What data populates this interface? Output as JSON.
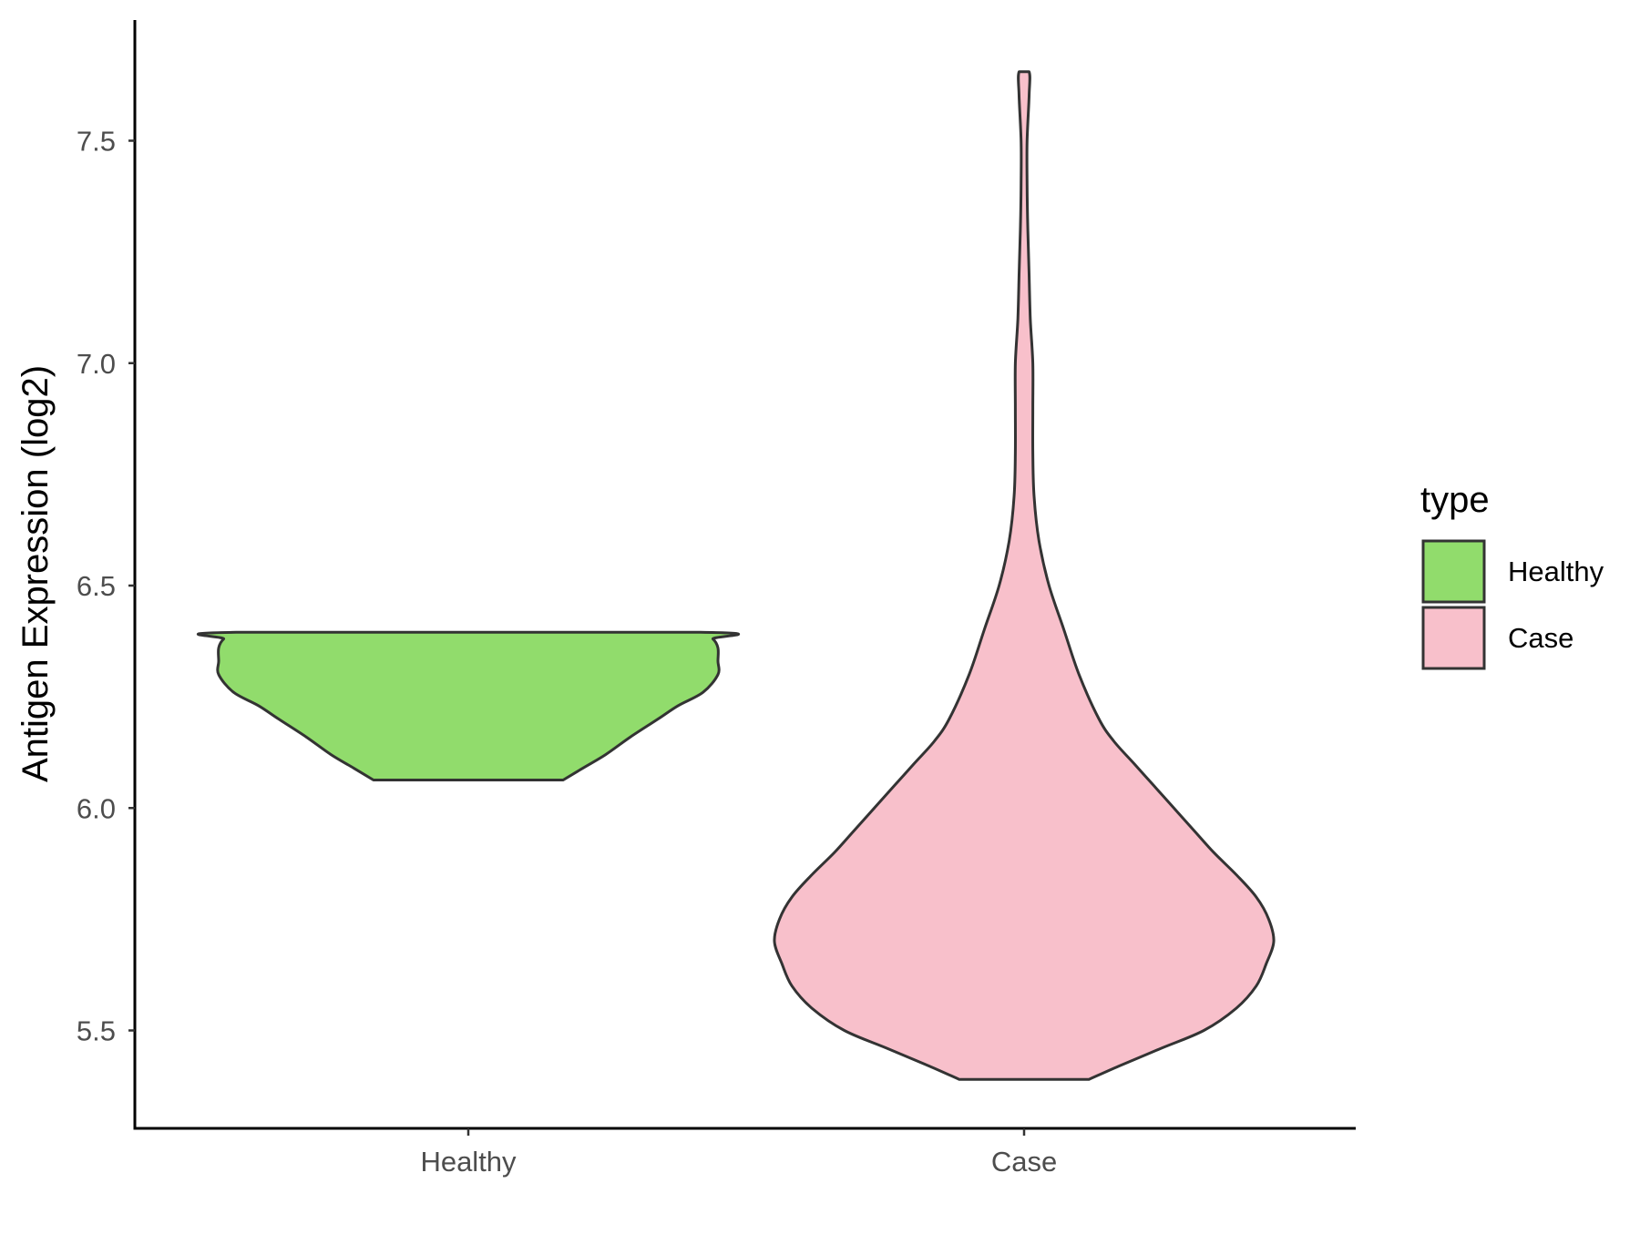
{
  "chart_data": {
    "type": "violin",
    "xlabel": "",
    "ylabel": "Antigen Expression (log2)",
    "ylim": [
      5.28,
      7.78
    ],
    "yticks": [
      5.5,
      6.0,
      6.5,
      7.0,
      7.5
    ],
    "ytick_labels": [
      "5.5",
      "6.0",
      "6.5",
      "7.0",
      "7.5"
    ],
    "categories": [
      "Healthy",
      "Case"
    ],
    "grid": false,
    "legend": {
      "title": "type",
      "position": "right",
      "entries": [
        {
          "label": "Healthy",
          "color": "#91dc6c"
        },
        {
          "label": "Case",
          "color": "#f8c0cb"
        }
      ]
    },
    "series": [
      {
        "name": "Healthy",
        "color": "#91dc6c",
        "range": [
          6.063,
          6.395
        ],
        "profile": [
          [
            6.063,
            0.38
          ],
          [
            6.09,
            0.46
          ],
          [
            6.12,
            0.55
          ],
          [
            6.16,
            0.65
          ],
          [
            6.2,
            0.76
          ],
          [
            6.23,
            0.84
          ],
          [
            6.26,
            0.94
          ],
          [
            6.3,
            1.0
          ],
          [
            6.33,
            1.0
          ],
          [
            6.36,
            1.0
          ],
          [
            6.38,
            0.98
          ],
          [
            6.395,
            0.93
          ]
        ]
      },
      {
        "name": "Case",
        "color": "#f8c0cb",
        "range": [
          5.39,
          7.655
        ],
        "profile": [
          [
            5.39,
            0.26
          ],
          [
            5.42,
            0.38
          ],
          [
            5.46,
            0.55
          ],
          [
            5.5,
            0.72
          ],
          [
            5.55,
            0.85
          ],
          [
            5.6,
            0.93
          ],
          [
            5.65,
            0.97
          ],
          [
            5.7,
            1.0
          ],
          [
            5.75,
            0.98
          ],
          [
            5.8,
            0.93
          ],
          [
            5.85,
            0.85
          ],
          [
            5.9,
            0.76
          ],
          [
            5.95,
            0.68
          ],
          [
            6.0,
            0.6
          ],
          [
            6.05,
            0.52
          ],
          [
            6.1,
            0.44
          ],
          [
            6.15,
            0.36
          ],
          [
            6.2,
            0.3
          ],
          [
            6.3,
            0.22
          ],
          [
            6.4,
            0.16
          ],
          [
            6.5,
            0.1
          ],
          [
            6.6,
            0.06
          ],
          [
            6.7,
            0.04
          ],
          [
            6.8,
            0.035
          ],
          [
            6.9,
            0.035
          ],
          [
            7.0,
            0.035
          ],
          [
            7.1,
            0.025
          ],
          [
            7.2,
            0.02
          ],
          [
            7.3,
            0.015
          ],
          [
            7.4,
            0.012
          ],
          [
            7.5,
            0.012
          ],
          [
            7.6,
            0.02
          ],
          [
            7.655,
            0.02
          ]
        ]
      }
    ]
  }
}
